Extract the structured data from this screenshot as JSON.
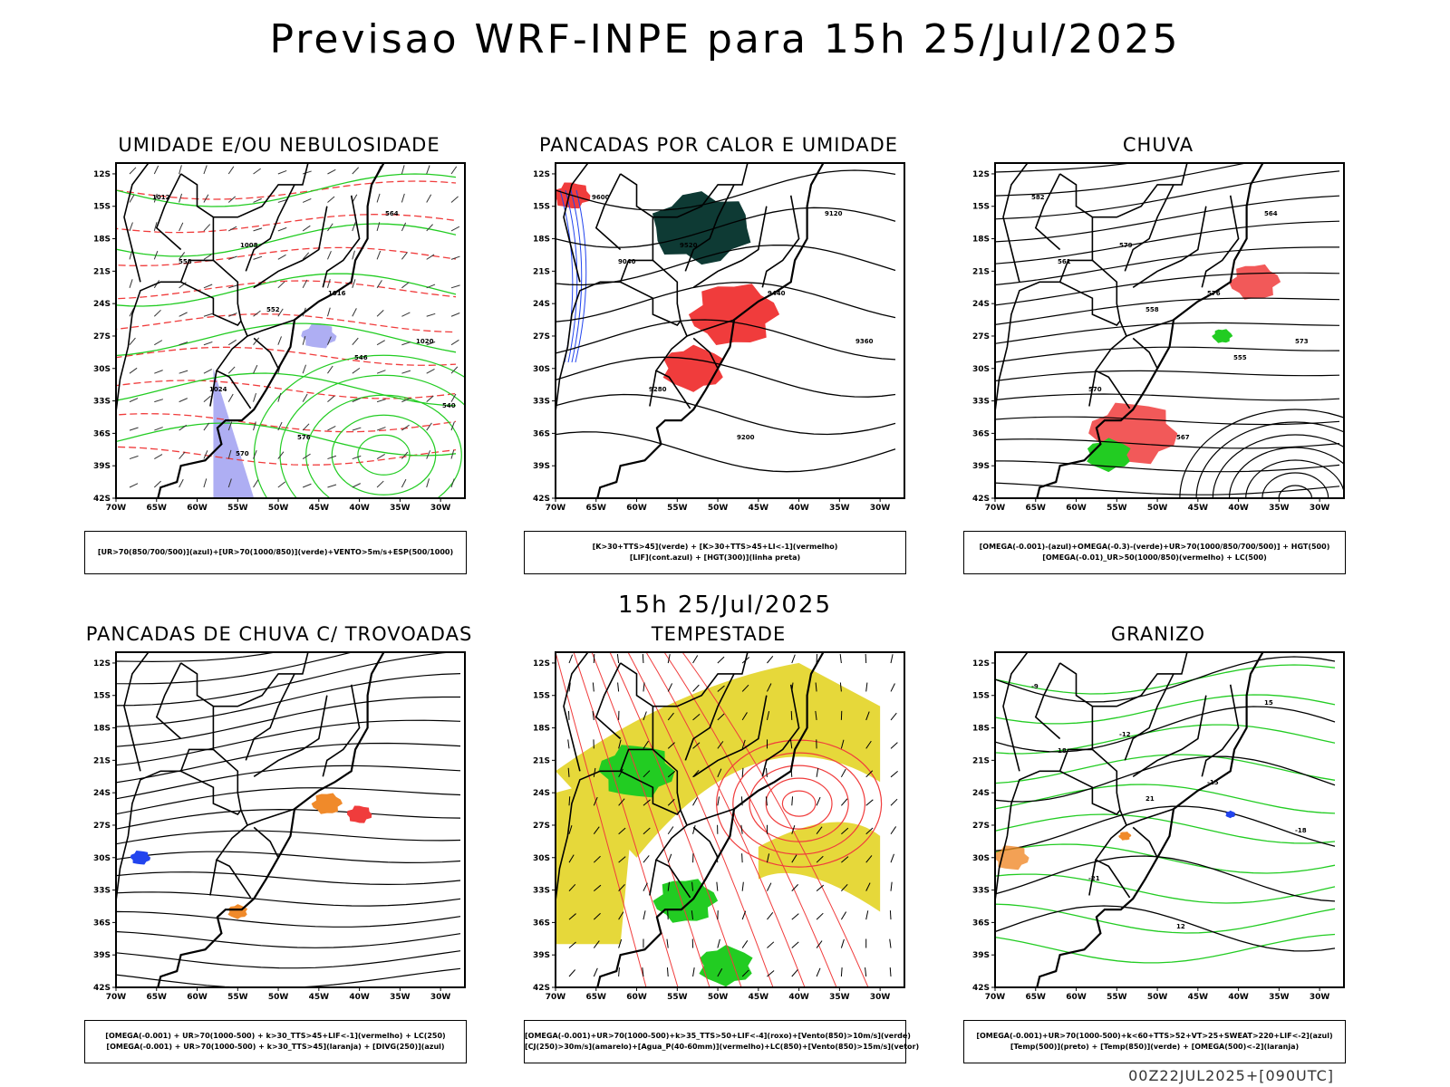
{
  "header": {
    "title": "Previsao WRF-INPE  para 15h 25/Jul/2025"
  },
  "middle_title": "15h 25/Jul/2025",
  "footer": "00Z22JUL2025+[090UTC]",
  "axes": {
    "lat_labels": [
      "12S",
      "15S",
      "18S",
      "21S",
      "24S",
      "27S",
      "30S",
      "33S",
      "36S",
      "39S",
      "42S"
    ],
    "lon_labels": [
      "70W",
      "65W",
      "60W",
      "55W",
      "50W",
      "45W",
      "40W",
      "35W",
      "30W"
    ]
  },
  "colors": {
    "red": "#f03c3c",
    "green": "#22cc22",
    "blue": "#2244ee",
    "orange": "#f08a2a",
    "yellow": "#e6d83a",
    "lavender": "#9a9af0",
    "darkteal": "#0e3a34"
  },
  "panels": [
    {
      "id": "umidade",
      "title": "UMIDADE E/OU NEBULOSIDADE",
      "legend": [
        "[UR>70(850/700/500)](azul)+[UR>70(1000/850)](verde)+VENTO>5m/s+ESP(500/1000)"
      ],
      "contour_labels": [
        "1012",
        "1008",
        "1016",
        "1020",
        "1024",
        "576",
        "564",
        "558",
        "552",
        "546",
        "540",
        "570"
      ]
    },
    {
      "id": "pancadas",
      "title": "PANCADAS POR CALOR E UMIDADE",
      "legend": [
        "[K>30+TTS>45](verde) + [K>30+TTS>45+LI<-1](vermelho)",
        "[LIF](cont.azul) + [HGT(300)](linha preta)"
      ],
      "contour_labels": [
        "9600",
        "9520",
        "9440",
        "9360",
        "9280",
        "9200",
        "9120",
        "9040"
      ]
    },
    {
      "id": "chuva",
      "title": "CHUVA",
      "legend": [
        "[OMEGA(-0.001)-(azul)+OMEGA(-0.3)-(verde)+UR>70(1000/850/700/500)] + HGT(500)",
        "[OMEGA(-0.01)_UR>50(1000/850)(vermelho) + LC(500)"
      ],
      "contour_labels": [
        "582",
        "579",
        "576",
        "573",
        "570",
        "567",
        "564",
        "561",
        "558",
        "555"
      ]
    },
    {
      "id": "trovoadas",
      "title": "PANCADAS DE CHUVA C/ TROVOADAS",
      "legend": [
        "[OMEGA(-0.001) + UR>70(1000-500) + k>30_TTS>45+LIF<-1](vermelho) + LC(250)",
        "[OMEGA(-0.001) + UR>70(1000-500) + k>30_TTS>45](laranja) + [DIVG(250)](azul)"
      ],
      "contour_labels": []
    },
    {
      "id": "tempestade",
      "title": "TEMPESTADE",
      "legend": [
        "[OMEGA(-0.001)+UR>70(1000-500)+k>35_TTS>50+LIF<-4](roxo)+[Vento(850)>10m/s](verde)",
        "[CJ(250)>30m/s](amarelo)+[Agua_P(40-60mm)](vermelho)+LC(850)+[Vento(850)>15m/s](vetor)"
      ],
      "contour_labels": []
    },
    {
      "id": "granizo",
      "title": "GRANIZO",
      "legend": [
        "[OMEGA(-0.001)+UR>70(1000-500)+k<60+TTS>52+VT>25+SWEAT>220+LIF<-2](azul)",
        "[Temp(500)](preto) + [Temp(850)](verde) + [OMEGA(500)<-2](laranja)"
      ],
      "contour_labels": [
        "-9",
        "-12",
        "-15",
        "-18",
        "-21",
        "12",
        "15",
        "18",
        "21"
      ]
    }
  ]
}
